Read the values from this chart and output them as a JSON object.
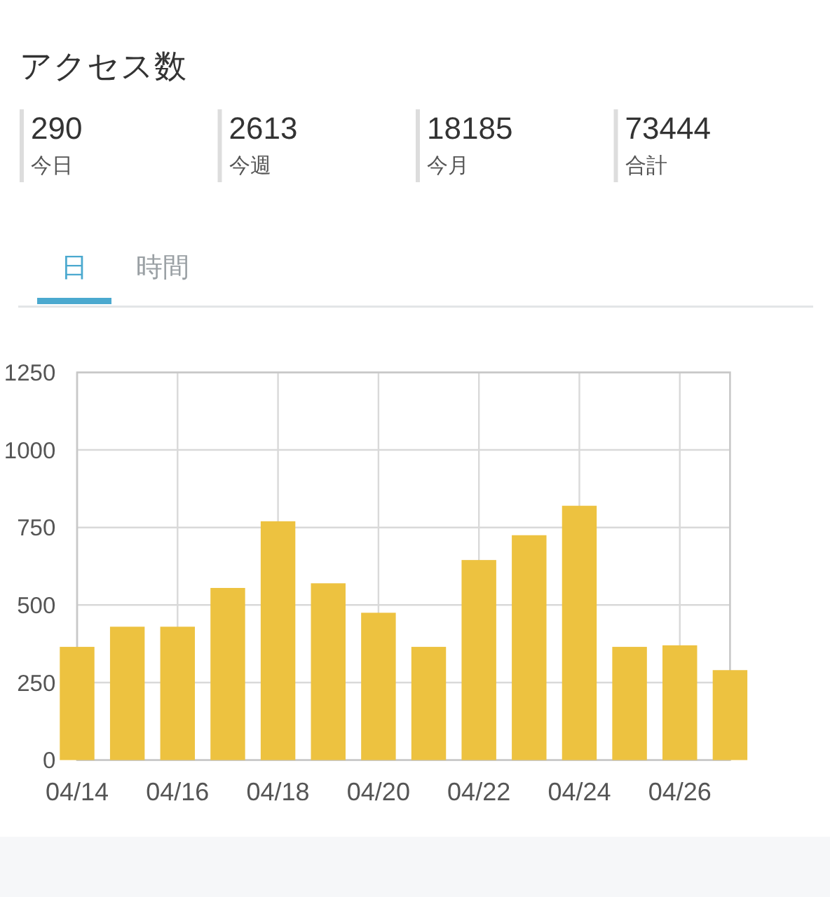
{
  "chart_data": [
    {
      "type": "other",
      "title": "アクセス数",
      "annotations": [
        "290",
        "今日",
        "2613",
        "今週",
        "18185",
        "今月",
        "73444",
        "合計"
      ]
    },
    {
      "type": "bar",
      "annotations": [
        "日",
        "時間"
      ],
      "x": [
        "--04-14",
        "--04-15",
        "--04-16",
        "--04-17",
        "--04-18",
        "--04-19",
        "--04-20",
        "--04-21",
        "--04-22",
        "--04-23",
        "--04-24",
        "--04-25",
        "--04-26",
        "--04-27"
      ],
      "values": [
        365,
        430,
        430,
        555,
        770,
        570,
        475,
        365,
        645,
        725,
        820,
        365,
        370,
        290
      ],
      "color": "#edc240",
      "xlim": [
        "--04-14",
        "--04-27"
      ],
      "xticks": [
        {
          "value": "--04-14",
          "label": "04/14"
        },
        {
          "value": "--04-16",
          "label": "04/16"
        },
        {
          "value": "--04-18",
          "label": "04/18"
        },
        {
          "value": "--04-20",
          "label": "04/20"
        },
        {
          "value": "--04-22",
          "label": "04/22"
        },
        {
          "value": "--04-24",
          "label": "04/24"
        },
        {
          "value": "--04-26",
          "label": "04/26"
        }
      ],
      "ylim": [
        0,
        1250
      ],
      "yticks": [
        0,
        250,
        500,
        750,
        1000,
        1250
      ],
      "grid": true
    }
  ]
}
